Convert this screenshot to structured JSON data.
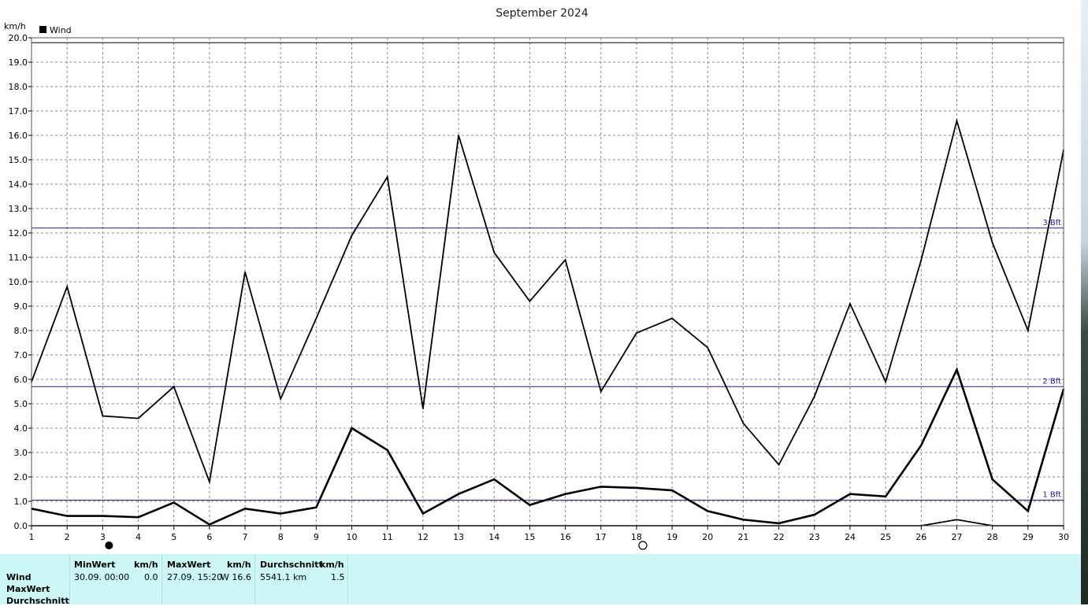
{
  "title": "September 2024",
  "y_unit": "km/h",
  "legend": {
    "label": "Wind",
    "color": "#000000"
  },
  "chart_data": {
    "type": "line",
    "title": "September 2024",
    "ylabel": "km/h",
    "xlabel": "",
    "ylim": [
      0,
      20
    ],
    "grid": true,
    "legend_position": "top-left",
    "x": [
      1,
      2,
      3,
      4,
      5,
      6,
      7,
      8,
      9,
      10,
      11,
      12,
      13,
      14,
      15,
      16,
      17,
      18,
      19,
      20,
      21,
      22,
      23,
      24,
      25,
      26,
      27,
      28,
      29,
      30
    ],
    "y_ticks": [
      "0.0",
      "1.0",
      "2.0",
      "3.0",
      "4.0",
      "5.0",
      "6.0",
      "7.0",
      "8.0",
      "9.0",
      "10.0",
      "11.0",
      "12.0",
      "13.0",
      "14.0",
      "15.0",
      "16.0",
      "17.0",
      "18.0",
      "19.0",
      "20.0"
    ],
    "series": [
      {
        "name": "Wind",
        "role": "max",
        "values": [
          5.9,
          9.8,
          4.5,
          4.4,
          5.7,
          1.8,
          10.4,
          5.2,
          8.5,
          11.9,
          14.3,
          4.8,
          16.0,
          11.2,
          9.2,
          10.9,
          5.5,
          7.9,
          8.5,
          7.3,
          4.2,
          2.5,
          5.3,
          9.1,
          5.9,
          10.9,
          16.6,
          11.6,
          8.0,
          15.4
        ]
      },
      {
        "name": "Wind",
        "role": "average",
        "values": [
          0.7,
          0.4,
          0.4,
          0.35,
          0.95,
          0.05,
          0.7,
          0.5,
          0.75,
          4.0,
          3.1,
          0.5,
          1.3,
          1.9,
          0.85,
          1.3,
          1.6,
          1.55,
          1.45,
          0.6,
          0.25,
          0.1,
          0.45,
          1.3,
          1.2,
          3.3,
          6.4,
          1.9,
          0.6,
          5.6
        ]
      },
      {
        "name": "Wind",
        "role": "min",
        "values": [
          0,
          0,
          0,
          0,
          0,
          0,
          0,
          0,
          0,
          0,
          0,
          0,
          0,
          0,
          0,
          0,
          0,
          0,
          0,
          0,
          0,
          0,
          0,
          0,
          0,
          0,
          0.25,
          0,
          0,
          0
        ]
      }
    ],
    "reference_lines": [
      {
        "label": "1 Bft",
        "value": 1.05,
        "color": "#1a1ab0"
      },
      {
        "label": "2 Bft",
        "value": 5.7,
        "color": "#1a1ab0"
      },
      {
        "label": "3 Bft",
        "value": 12.2,
        "color": "#1a1ab0"
      },
      {
        "label": "",
        "value": 19.8,
        "color": "#000000"
      }
    ],
    "moon_phases": [
      {
        "day": 3,
        "phase": "new-moon"
      },
      {
        "day": 18,
        "phase": "full-moon"
      }
    ]
  },
  "stats": {
    "row_labels": [
      "Wind",
      "MaxWert",
      "Durchschnitt"
    ],
    "min": {
      "header": "MinWert",
      "unit": "km/h",
      "date": "30.09.  00:00",
      "value": "0.0"
    },
    "max": {
      "header": "MaxWert",
      "unit": "km/h",
      "date": "27.09.  15:20",
      "value": "W 16.6"
    },
    "avg": {
      "header": "Durchschnitt",
      "unit": "km/h",
      "distance": "5541.1 km",
      "value": "1.5"
    }
  }
}
